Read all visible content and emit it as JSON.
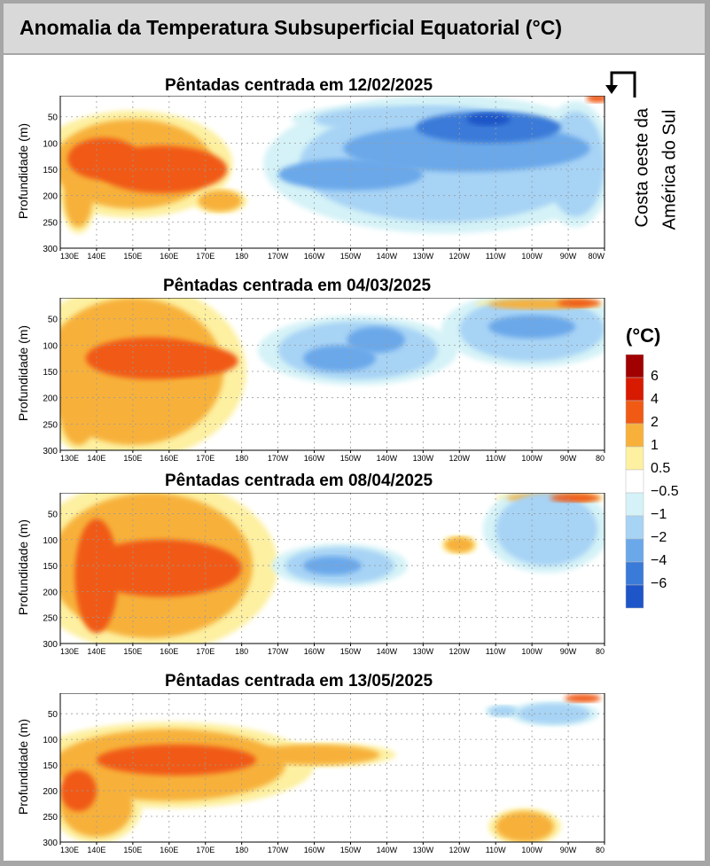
{
  "title": "Anomalia da Temperatura Subsuperficial Equatorial (°C)",
  "annotation": {
    "line1": "Costa oeste da",
    "line2": "América do Sul"
  },
  "legend": {
    "title": "(°C)",
    "labels": [
      "6",
      "4",
      "2",
      "1",
      "0.5",
      "−0.5",
      "−1",
      "−2",
      "−4",
      "−6"
    ],
    "colors": [
      "#a10000",
      "#d81a00",
      "#f05a14",
      "#f7b13b",
      "#fdf0a0",
      "#ffffff",
      "#d4f2f7",
      "#a7d3f5",
      "#6aa8ea",
      "#3a7ad8",
      "#1e55c8"
    ]
  },
  "chart_data": [
    {
      "type": "heatmap",
      "title": "Pêntadas centrada em 12/02/2025",
      "ylabel": "Profundidade (m)",
      "x_ticks": [
        "130E",
        "140E",
        "150E",
        "160E",
        "170E",
        "180",
        "170W",
        "160W",
        "150W",
        "140W",
        "130W",
        "120W",
        "110W",
        "100W",
        "90W",
        "80W"
      ],
      "y_ticks": [
        "50",
        "100",
        "150",
        "200",
        "250",
        "300"
      ],
      "xlim": [
        130,
        280
      ],
      "ylim": [
        300,
        10
      ],
      "anomalies": [
        {
          "lon": 150,
          "depth": 140,
          "rx": 22,
          "ry": 85,
          "level": 1
        },
        {
          "lon": 158,
          "depth": 150,
          "rx": 18,
          "ry": 45,
          "level": 2
        },
        {
          "lon": 142,
          "depth": 130,
          "rx": 10,
          "ry": 40,
          "level": 2
        },
        {
          "lon": 135,
          "depth": 200,
          "rx": 4,
          "ry": 60,
          "level": 1
        },
        {
          "lon": 174,
          "depth": 210,
          "rx": 6,
          "ry": 20,
          "level": 1
        },
        {
          "lon": 278,
          "depth": 15,
          "rx": 3,
          "ry": 8,
          "level": 2
        },
        {
          "lon": 236,
          "depth": 140,
          "rx": 40,
          "ry": 110,
          "level": -1
        },
        {
          "lon": 242,
          "depth": 110,
          "rx": 34,
          "ry": 45,
          "level": -2
        },
        {
          "lon": 248,
          "depth": 70,
          "rx": 20,
          "ry": 30,
          "level": -4
        },
        {
          "lon": 248,
          "depth": 55,
          "rx": 6,
          "ry": 12,
          "level": -6
        },
        {
          "lon": 210,
          "depth": 160,
          "rx": 20,
          "ry": 30,
          "level": -2
        },
        {
          "lon": 225,
          "depth": 55,
          "rx": 25,
          "ry": 25,
          "level": -1
        },
        {
          "lon": 272,
          "depth": 140,
          "rx": 8,
          "ry": 100,
          "level": -1
        }
      ]
    },
    {
      "type": "heatmap",
      "title": "Pêntadas centrada em 04/03/2025",
      "ylabel": "Profundidade (m)",
      "x_ticks": [
        "130E",
        "140E",
        "150E",
        "160E",
        "170E",
        "180",
        "170W",
        "160W",
        "150W",
        "140W",
        "130W",
        "120W",
        "110W",
        "100W",
        "90W",
        "80"
      ],
      "y_ticks": [
        "50",
        "100",
        "150",
        "200",
        "250",
        "300"
      ],
      "xlim": [
        130,
        280
      ],
      "ylim": [
        300,
        10
      ],
      "anomalies": [
        {
          "lon": 150,
          "depth": 150,
          "rx": 25,
          "ry": 140,
          "level": 1
        },
        {
          "lon": 155,
          "depth": 125,
          "rx": 18,
          "ry": 40,
          "level": 2
        },
        {
          "lon": 165,
          "depth": 130,
          "rx": 14,
          "ry": 30,
          "level": 2
        },
        {
          "lon": 135,
          "depth": 230,
          "rx": 5,
          "ry": 60,
          "level": 1
        },
        {
          "lon": 212,
          "depth": 110,
          "rx": 22,
          "ry": 55,
          "level": -1
        },
        {
          "lon": 207,
          "depth": 125,
          "rx": 10,
          "ry": 25,
          "level": -2
        },
        {
          "lon": 217,
          "depth": 90,
          "rx": 8,
          "ry": 25,
          "level": -2
        },
        {
          "lon": 260,
          "depth": 70,
          "rx": 20,
          "ry": 60,
          "level": -1
        },
        {
          "lon": 260,
          "depth": 65,
          "rx": 12,
          "ry": 22,
          "level": -2
        },
        {
          "lon": 262,
          "depth": 22,
          "rx": 14,
          "ry": 10,
          "level": 1
        },
        {
          "lon": 273,
          "depth": 20,
          "rx": 6,
          "ry": 8,
          "level": 2
        }
      ]
    },
    {
      "type": "heatmap",
      "title": "Pêntadas centrada em 08/04/2025",
      "ylabel": "Profundidade (m)",
      "x_ticks": [
        "130E",
        "140E",
        "150E",
        "160E",
        "170E",
        "180",
        "170W",
        "160W",
        "150W",
        "140W",
        "130W",
        "120W",
        "110W",
        "100W",
        "90W",
        "80"
      ],
      "y_ticks": [
        "50",
        "100",
        "150",
        "200",
        "250",
        "300"
      ],
      "xlim": [
        130,
        280
      ],
      "ylim": [
        300,
        10
      ],
      "anomalies": [
        {
          "lon": 155,
          "depth": 150,
          "rx": 28,
          "ry": 140,
          "level": 1
        },
        {
          "lon": 158,
          "depth": 155,
          "rx": 22,
          "ry": 55,
          "level": 2
        },
        {
          "lon": 140,
          "depth": 170,
          "rx": 6,
          "ry": 110,
          "level": 2
        },
        {
          "lon": 207,
          "depth": 150,
          "rx": 15,
          "ry": 35,
          "level": -1
        },
        {
          "lon": 205,
          "depth": 150,
          "rx": 8,
          "ry": 18,
          "level": -2
        },
        {
          "lon": 265,
          "depth": 20,
          "rx": 12,
          "ry": 10,
          "level": 1
        },
        {
          "lon": 272,
          "depth": 20,
          "rx": 7,
          "ry": 8,
          "level": 2
        },
        {
          "lon": 264,
          "depth": 80,
          "rx": 14,
          "ry": 70,
          "level": -1
        },
        {
          "lon": 240,
          "depth": 110,
          "rx": 4,
          "ry": 15,
          "level": 1
        }
      ]
    },
    {
      "type": "heatmap",
      "title": "Pêntadas centrada em 13/05/2025",
      "ylabel": "Profundidade (m)",
      "x_ticks": [
        "130E",
        "140E",
        "150E",
        "160E",
        "170E",
        "180",
        "170W",
        "160W",
        "150W",
        "140W",
        "130W",
        "120W",
        "110W",
        "100W",
        "90W",
        "80"
      ],
      "y_ticks": [
        "50",
        "100",
        "150",
        "200",
        "250",
        "300"
      ],
      "xlim": [
        130,
        280
      ],
      "ylim": [
        300,
        10
      ],
      "anomalies": [
        {
          "lon": 160,
          "depth": 150,
          "rx": 32,
          "ry": 70,
          "level": 1
        },
        {
          "lon": 162,
          "depth": 140,
          "rx": 22,
          "ry": 30,
          "level": 2
        },
        {
          "lon": 200,
          "depth": 130,
          "rx": 18,
          "ry": 20,
          "level": 1
        },
        {
          "lon": 135,
          "depth": 200,
          "rx": 5,
          "ry": 40,
          "level": 2
        },
        {
          "lon": 140,
          "depth": 230,
          "rx": 10,
          "ry": 60,
          "level": 1
        },
        {
          "lon": 258,
          "depth": 270,
          "rx": 8,
          "ry": 30,
          "level": 1
        },
        {
          "lon": 266,
          "depth": 50,
          "rx": 10,
          "ry": 20,
          "level": -1
        },
        {
          "lon": 252,
          "depth": 45,
          "rx": 4,
          "ry": 10,
          "level": -1
        },
        {
          "lon": 274,
          "depth": 20,
          "rx": 5,
          "ry": 8,
          "level": 2
        }
      ]
    }
  ]
}
